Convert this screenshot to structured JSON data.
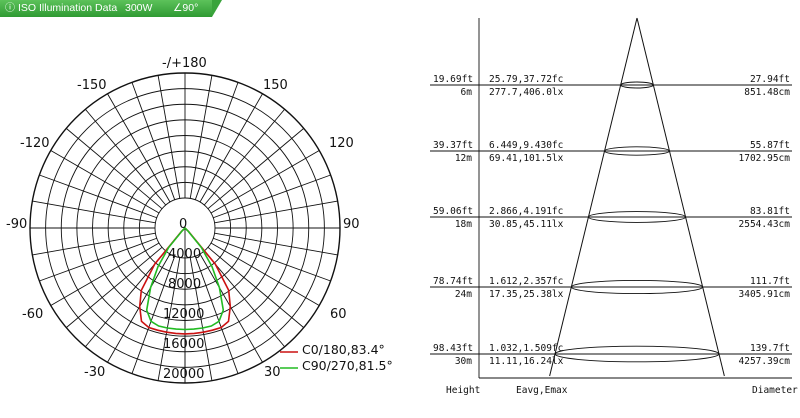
{
  "header": {
    "title": "ISO Illumination  Data",
    "power": "300W",
    "angle": "∠90°",
    "bg_color": "#3aa43c"
  },
  "polar": {
    "angle_labels": [
      "-/+180",
      "-150",
      "150",
      "-120",
      "120",
      "-90",
      "90",
      "-60",
      "60",
      "-30",
      "30"
    ],
    "radial_labels": [
      "0",
      "4000",
      "8000",
      "12000",
      "16000",
      "20000"
    ],
    "series": [
      {
        "name": "C0/180,83.4°",
        "color": "#cc1111"
      },
      {
        "name": "C90/270,81.5°",
        "color": "#22bb22"
      }
    ]
  },
  "chart_data": {
    "type": "polar",
    "radial_unit": "cd",
    "rlim": [
      0,
      20000
    ],
    "angle_ticks_deg": [
      -180,
      -150,
      -120,
      -90,
      -60,
      -30,
      0,
      30,
      60,
      90,
      120,
      150,
      180
    ],
    "series": [
      {
        "name": "C0/180,83.4°",
        "angles_deg": [
          -45,
          -40,
          -35,
          -30,
          -25,
          -20,
          -15,
          -10,
          -5,
          0,
          5,
          10,
          15,
          20,
          25,
          30,
          35,
          40,
          45
        ],
        "values": [
          700,
          6500,
          10500,
          12500,
          14200,
          14600,
          14600,
          14600,
          14600,
          14600,
          14600,
          14600,
          14600,
          14600,
          14200,
          12500,
          10500,
          6500,
          700
        ]
      },
      {
        "name": "C90/270,81.5°",
        "angles_deg": [
          -45,
          -40,
          -35,
          -30,
          -25,
          -20,
          -15,
          -10,
          -5,
          0,
          5,
          10,
          15,
          20,
          25,
          30,
          35,
          40,
          45
        ],
        "values": [
          600,
          3500,
          6500,
          9500,
          12500,
          13700,
          14000,
          14000,
          14000,
          14000,
          14000,
          14000,
          14000,
          13700,
          12500,
          9500,
          6500,
          3500,
          600
        ]
      }
    ]
  },
  "cone": {
    "footer": {
      "height": "Height",
      "eavg": "Eavg,Emax",
      "diameter": "Diameter"
    },
    "rows": [
      {
        "ft": "19.69ft",
        "m": "6m",
        "fc": "25.79,37.72fc",
        "lx": "277.7,406.0lx",
        "dia_ft": "27.94ft",
        "dia_cm": "851.48cm"
      },
      {
        "ft": "39.37ft",
        "m": "12m",
        "fc": "6.449,9.430fc",
        "lx": "69.41,101.5lx",
        "dia_ft": "55.87ft",
        "dia_cm": "1702.95cm"
      },
      {
        "ft": "59.06ft",
        "m": "18m",
        "fc": "2.866,4.191fc",
        "lx": "30.85,45.11lx",
        "dia_ft": "83.81ft",
        "dia_cm": "2554.43cm"
      },
      {
        "ft": "78.74ft",
        "m": "24m",
        "fc": "1.612,2.357fc",
        "lx": "17.35,25.38lx",
        "dia_ft": "111.7ft",
        "dia_cm": "3405.91cm"
      },
      {
        "ft": "98.43ft",
        "m": "30m",
        "fc": "1.032,1.509fc",
        "lx": "11.11,16.24lx",
        "dia_ft": "139.7ft",
        "dia_cm": "4257.39cm"
      }
    ]
  }
}
